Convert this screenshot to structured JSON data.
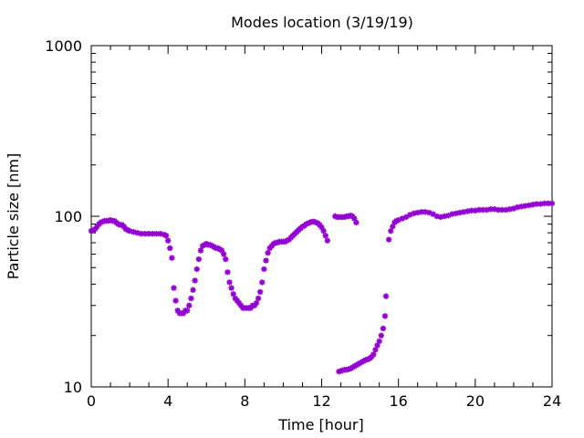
{
  "chart_data": {
    "type": "scatter",
    "title": "Modes location (3/19/19)",
    "xlabel": "Time [hour]",
    "ylabel": "Particle size [nm]",
    "xlim": [
      0,
      24
    ],
    "ylim": [
      10,
      1000
    ],
    "yscale": "log",
    "grid": false,
    "marker": "asterisk",
    "color": "#9400D3",
    "x_ticks": [
      0,
      4,
      8,
      12,
      16,
      20,
      24
    ],
    "x_tick_labels": [
      "0",
      "4",
      "8",
      "12",
      "16",
      "20",
      "24"
    ],
    "y_ticks": [
      10,
      100,
      1000
    ],
    "y_tick_labels": [
      "10",
      "100",
      "1000"
    ],
    "series": [
      {
        "points": [
          [
            0.0,
            82
          ],
          [
            0.1,
            83
          ],
          [
            0.2,
            84
          ],
          [
            0.3,
            87
          ],
          [
            0.4,
            90
          ],
          [
            0.5,
            92
          ],
          [
            0.6,
            93
          ],
          [
            0.7,
            94
          ],
          [
            0.8,
            94
          ],
          [
            0.9,
            94
          ],
          [
            1.0,
            95
          ],
          [
            1.1,
            94
          ],
          [
            1.2,
            94
          ],
          [
            1.3,
            92
          ],
          [
            1.4,
            90
          ],
          [
            1.5,
            89
          ],
          [
            1.6,
            89
          ],
          [
            1.7,
            87
          ],
          [
            1.8,
            84
          ],
          [
            1.9,
            83
          ],
          [
            2.0,
            82
          ],
          [
            2.2,
            81
          ],
          [
            2.4,
            80
          ],
          [
            2.6,
            79
          ],
          [
            2.8,
            79
          ],
          [
            3.0,
            79
          ],
          [
            3.2,
            79
          ],
          [
            3.4,
            79
          ],
          [
            3.6,
            79
          ],
          [
            3.8,
            78
          ],
          [
            3.9,
            77
          ],
          [
            4.0,
            72
          ],
          [
            4.1,
            65
          ],
          [
            4.2,
            57
          ],
          [
            4.3,
            38
          ],
          [
            4.4,
            32
          ],
          [
            4.5,
            28
          ],
          [
            4.6,
            27
          ],
          [
            4.7,
            27
          ],
          [
            4.8,
            27
          ],
          [
            4.9,
            28
          ],
          [
            5.0,
            28
          ],
          [
            5.1,
            30
          ],
          [
            5.2,
            33
          ],
          [
            5.3,
            37
          ],
          [
            5.4,
            42
          ],
          [
            5.5,
            49
          ],
          [
            5.6,
            56
          ],
          [
            5.7,
            63
          ],
          [
            5.8,
            67
          ],
          [
            5.9,
            68
          ],
          [
            6.0,
            69
          ],
          [
            6.1,
            68
          ],
          [
            6.2,
            68
          ],
          [
            6.3,
            67
          ],
          [
            6.4,
            66
          ],
          [
            6.5,
            65
          ],
          [
            6.6,
            65
          ],
          [
            6.7,
            64
          ],
          [
            6.8,
            63
          ],
          [
            6.9,
            60
          ],
          [
            7.0,
            56
          ],
          [
            7.1,
            47
          ],
          [
            7.2,
            41
          ],
          [
            7.3,
            38
          ],
          [
            7.4,
            35
          ],
          [
            7.5,
            33
          ],
          [
            7.6,
            32
          ],
          [
            7.7,
            31
          ],
          [
            7.8,
            30
          ],
          [
            7.9,
            29
          ],
          [
            8.0,
            29
          ],
          [
            8.1,
            29
          ],
          [
            8.2,
            29
          ],
          [
            8.3,
            29
          ],
          [
            8.4,
            30
          ],
          [
            8.5,
            30
          ],
          [
            8.6,
            31
          ],
          [
            8.7,
            33
          ],
          [
            8.8,
            36
          ],
          [
            8.9,
            41
          ],
          [
            9.0,
            49
          ],
          [
            9.1,
            55
          ],
          [
            9.2,
            61
          ],
          [
            9.3,
            65
          ],
          [
            9.4,
            67
          ],
          [
            9.5,
            69
          ],
          [
            9.6,
            70
          ],
          [
            9.7,
            70
          ],
          [
            9.8,
            71
          ],
          [
            9.9,
            71
          ],
          [
            10.0,
            71
          ],
          [
            10.1,
            71
          ],
          [
            10.2,
            72
          ],
          [
            10.3,
            73
          ],
          [
            10.4,
            75
          ],
          [
            10.5,
            77
          ],
          [
            10.6,
            79
          ],
          [
            10.7,
            81
          ],
          [
            10.8,
            83
          ],
          [
            10.9,
            85
          ],
          [
            11.0,
            87
          ],
          [
            11.1,
            88
          ],
          [
            11.2,
            90
          ],
          [
            11.3,
            91
          ],
          [
            11.4,
            92
          ],
          [
            11.5,
            93
          ],
          [
            11.6,
            93
          ],
          [
            11.7,
            92
          ],
          [
            11.8,
            91
          ],
          [
            11.9,
            89
          ],
          [
            12.0,
            86
          ],
          [
            12.1,
            82
          ],
          [
            12.2,
            77
          ],
          [
            12.3,
            72
          ],
          [
            12.7,
            100
          ],
          [
            12.8,
            99
          ],
          [
            12.9,
            99
          ],
          [
            13.0,
            99
          ],
          [
            13.1,
            99
          ],
          [
            13.2,
            99
          ],
          [
            13.3,
            100
          ],
          [
            13.4,
            100
          ],
          [
            13.5,
            101
          ],
          [
            13.6,
            100
          ],
          [
            13.7,
            97
          ],
          [
            13.8,
            92
          ],
          [
            12.9,
            12.3
          ],
          [
            13.0,
            12.4
          ],
          [
            13.1,
            12.5
          ],
          [
            13.2,
            12.6
          ],
          [
            13.3,
            12.6
          ],
          [
            13.4,
            12.7
          ],
          [
            13.5,
            12.8
          ],
          [
            13.6,
            13.0
          ],
          [
            13.7,
            13.2
          ],
          [
            13.8,
            13.4
          ],
          [
            13.9,
            13.6
          ],
          [
            14.0,
            13.8
          ],
          [
            14.1,
            14.0
          ],
          [
            14.2,
            14.2
          ],
          [
            14.3,
            14.4
          ],
          [
            14.4,
            14.5
          ],
          [
            14.5,
            14.7
          ],
          [
            14.6,
            15.0
          ],
          [
            14.7,
            15.5
          ],
          [
            14.8,
            16.5
          ],
          [
            14.9,
            17.5
          ],
          [
            15.0,
            18.5
          ],
          [
            15.1,
            20
          ],
          [
            15.2,
            22
          ],
          [
            15.3,
            26
          ],
          [
            15.35,
            34
          ],
          [
            15.5,
            73
          ],
          [
            15.6,
            82
          ],
          [
            15.7,
            87
          ],
          [
            15.8,
            92
          ],
          [
            15.9,
            94
          ],
          [
            16.0,
            95
          ],
          [
            16.2,
            97
          ],
          [
            16.4,
            99
          ],
          [
            16.6,
            102
          ],
          [
            16.8,
            104
          ],
          [
            17.0,
            105
          ],
          [
            17.2,
            106
          ],
          [
            17.4,
            106
          ],
          [
            17.6,
            105
          ],
          [
            17.8,
            103
          ],
          [
            18.0,
            100
          ],
          [
            18.2,
            99
          ],
          [
            18.4,
            100
          ],
          [
            18.6,
            101
          ],
          [
            18.8,
            103
          ],
          [
            19.0,
            104
          ],
          [
            19.2,
            105
          ],
          [
            19.4,
            106
          ],
          [
            19.6,
            107
          ],
          [
            19.8,
            108
          ],
          [
            20.0,
            108
          ],
          [
            20.2,
            109
          ],
          [
            20.4,
            109
          ],
          [
            20.6,
            109
          ],
          [
            20.8,
            110
          ],
          [
            21.0,
            110
          ],
          [
            21.2,
            109
          ],
          [
            21.4,
            109
          ],
          [
            21.6,
            109
          ],
          [
            21.8,
            110
          ],
          [
            22.0,
            111
          ],
          [
            22.2,
            113
          ],
          [
            22.4,
            114
          ],
          [
            22.6,
            115
          ],
          [
            22.8,
            116
          ],
          [
            23.0,
            117
          ],
          [
            23.2,
            118
          ],
          [
            23.4,
            118
          ],
          [
            23.6,
            119
          ],
          [
            23.8,
            119
          ],
          [
            24.0,
            119
          ]
        ]
      }
    ]
  }
}
